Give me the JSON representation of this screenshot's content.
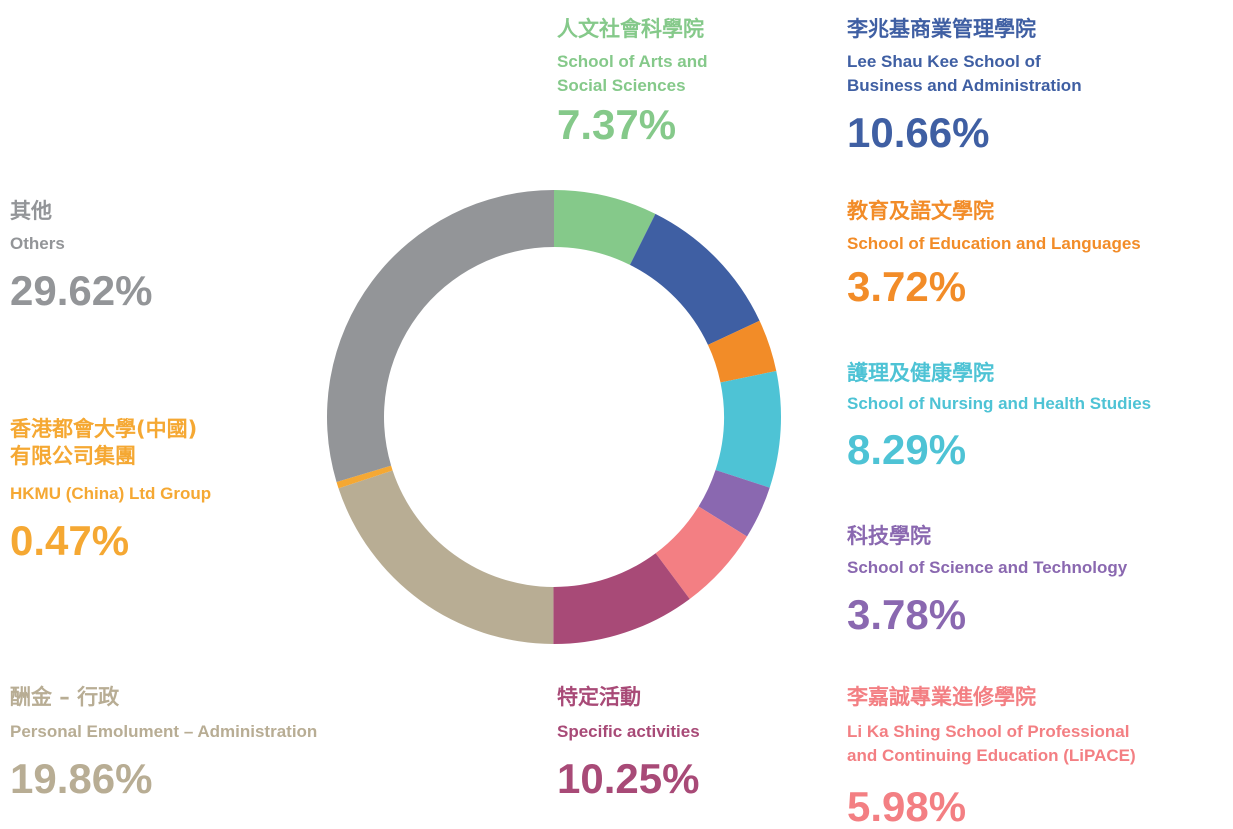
{
  "chart_data": {
    "type": "donut",
    "categories_zh": [
      "人文社會科學院",
      "李兆基商業管理學院",
      "教育及語文學院",
      "護理及健康學院",
      "科技學院",
      "李嘉誠專業進修學院",
      "特定活動",
      "酬金 – 行政",
      "香港都會大學(中國)\n有限公司集團",
      "其他"
    ],
    "categories": [
      "School of Arts and\nSocial Sciences",
      "Lee Shau Kee School of\nBusiness and Administration",
      "School of Education and Languages",
      "School of Nursing and Health Studies",
      "School of Science and Technology",
      "Li Ka Shing School of Professional\nand Continuing Education (LiPACE)",
      "Specific activities",
      "Personal Emolument – Administration",
      "HKMU (China) Ltd Group",
      "Others"
    ],
    "values": [
      7.37,
      10.66,
      3.72,
      8.29,
      3.78,
      5.98,
      10.25,
      19.86,
      0.47,
      29.62
    ],
    "value_labels": [
      "7.37%",
      "10.66%",
      "3.72%",
      "8.29%",
      "3.78%",
      "5.98%",
      "10.25%",
      "19.86%",
      "0.47%",
      "29.62%"
    ],
    "colors": [
      "#85c98a",
      "#3f5fa3",
      "#f28c28",
      "#4ec3d5",
      "#8a68b0",
      "#f37f83",
      "#a84a77",
      "#b8ad94",
      "#f5a833",
      "#939598"
    ]
  }
}
